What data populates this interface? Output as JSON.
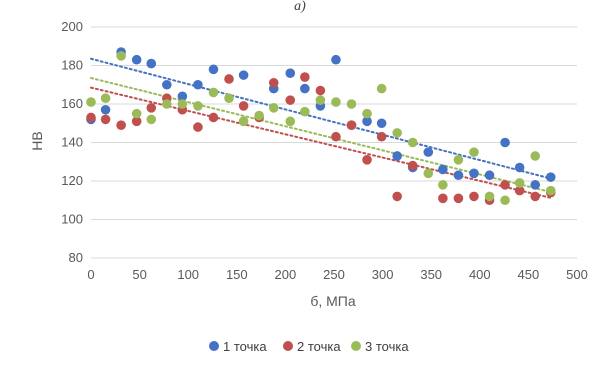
{
  "header_text": "а)",
  "chart_data": {
    "type": "scatter",
    "xlabel": "б, МПа",
    "ylabel": "НВ",
    "xlim": [
      0,
      500
    ],
    "ylim": [
      80,
      200
    ],
    "x_ticks": [
      "0",
      "50",
      "100",
      "150",
      "200",
      "250",
      "300",
      "350",
      "400",
      "450",
      "500"
    ],
    "y_ticks": [
      "80",
      "100",
      "120",
      "140",
      "160",
      "180",
      "200"
    ],
    "grid": "horizontal",
    "legend_position": "bottom",
    "series": [
      {
        "name": "1 точка",
        "color": "#4472C4",
        "points": [
          [
            0,
            152
          ],
          [
            15,
            157
          ],
          [
            31,
            187
          ],
          [
            47,
            183
          ],
          [
            62,
            181
          ],
          [
            78,
            170
          ],
          [
            94,
            164
          ],
          [
            110,
            170
          ],
          [
            126,
            178
          ],
          [
            157,
            175
          ],
          [
            188,
            168
          ],
          [
            205,
            176
          ],
          [
            220,
            168
          ],
          [
            236,
            159
          ],
          [
            252,
            183
          ],
          [
            268,
            149
          ],
          [
            284,
            151
          ],
          [
            299,
            150
          ],
          [
            315,
            133
          ],
          [
            331,
            127
          ],
          [
            347,
            135
          ],
          [
            362,
            126
          ],
          [
            378,
            123
          ],
          [
            394,
            124
          ],
          [
            410,
            123
          ],
          [
            426,
            140
          ],
          [
            441,
            127
          ],
          [
            457,
            118
          ],
          [
            473,
            122
          ]
        ],
        "trend": [
          [
            0,
            183.5
          ],
          [
            475,
            121
          ]
        ]
      },
      {
        "name": "2 точка",
        "color": "#C0504D",
        "points": [
          [
            0,
            153
          ],
          [
            15,
            152
          ],
          [
            31,
            149
          ],
          [
            47,
            151
          ],
          [
            62,
            158
          ],
          [
            78,
            163
          ],
          [
            94,
            157
          ],
          [
            110,
            148
          ],
          [
            126,
            153
          ],
          [
            142,
            173
          ],
          [
            157,
            159
          ],
          [
            173,
            153
          ],
          [
            188,
            171
          ],
          [
            205,
            162
          ],
          [
            220,
            174
          ],
          [
            236,
            167
          ],
          [
            252,
            143
          ],
          [
            268,
            149
          ],
          [
            284,
            131
          ],
          [
            299,
            143
          ],
          [
            315,
            112
          ],
          [
            331,
            128
          ],
          [
            362,
            111
          ],
          [
            378,
            111
          ],
          [
            394,
            112
          ],
          [
            410,
            110
          ],
          [
            426,
            118
          ],
          [
            441,
            115
          ],
          [
            457,
            112
          ],
          [
            473,
            114
          ]
        ],
        "trend": [
          [
            0,
            168.5
          ],
          [
            475,
            111
          ]
        ]
      },
      {
        "name": "3 точка",
        "color": "#9BBB59",
        "points": [
          [
            0,
            161
          ],
          [
            15,
            163
          ],
          [
            31,
            185
          ],
          [
            47,
            155
          ],
          [
            62,
            152
          ],
          [
            78,
            160
          ],
          [
            94,
            160
          ],
          [
            110,
            159
          ],
          [
            126,
            166
          ],
          [
            142,
            163
          ],
          [
            157,
            151
          ],
          [
            173,
            154
          ],
          [
            188,
            158
          ],
          [
            205,
            151
          ],
          [
            220,
            156
          ],
          [
            236,
            162
          ],
          [
            252,
            161
          ],
          [
            268,
            160
          ],
          [
            284,
            155
          ],
          [
            299,
            168
          ],
          [
            315,
            145
          ],
          [
            331,
            140
          ],
          [
            347,
            124
          ],
          [
            362,
            118
          ],
          [
            378,
            131
          ],
          [
            394,
            135
          ],
          [
            410,
            112
          ],
          [
            426,
            110
          ],
          [
            441,
            119
          ],
          [
            457,
            133
          ],
          [
            473,
            115
          ]
        ],
        "trend": [
          [
            0,
            173.5
          ],
          [
            475,
            114
          ]
        ]
      }
    ]
  }
}
